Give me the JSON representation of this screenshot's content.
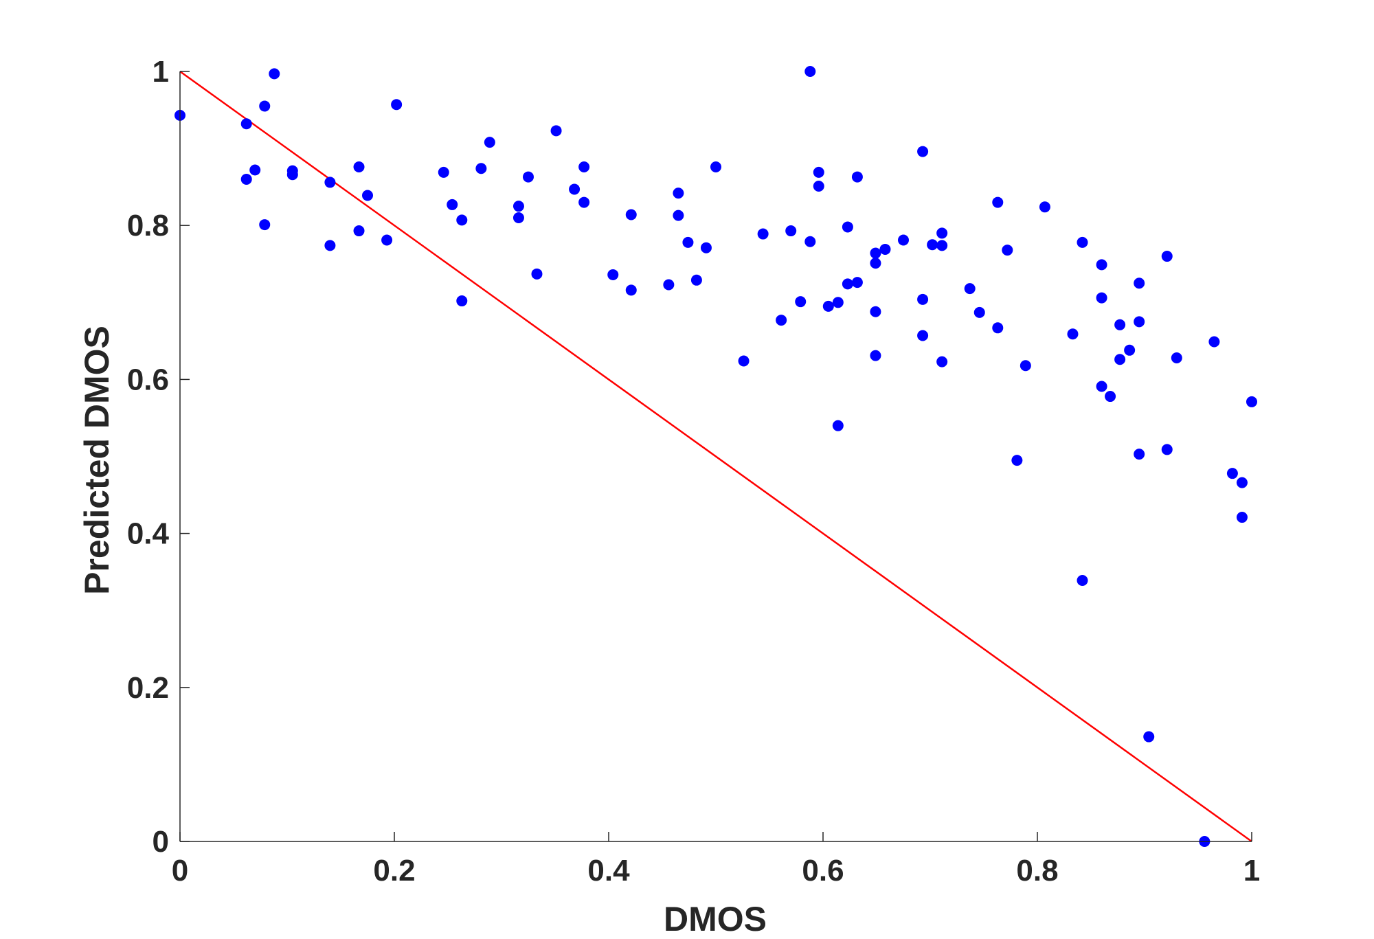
{
  "chart_data": {
    "type": "scatter",
    "title": "",
    "xlabel": "DMOS",
    "ylabel": "Predicted DMOS",
    "xlim": [
      0,
      1
    ],
    "ylim": [
      0,
      1
    ],
    "grid": false,
    "x_ticks": [
      "0",
      "0.2",
      "0.4",
      "0.6",
      "0.8",
      "1"
    ],
    "y_ticks": [
      "0",
      "0.2",
      "0.4",
      "0.6",
      "0.8",
      "1"
    ],
    "colors": {
      "points": "#0000ff",
      "reference_line": "#ff0000",
      "axes": "#262626"
    },
    "reference_line": {
      "x": [
        0,
        1
      ],
      "y": [
        1,
        0
      ]
    },
    "points": [
      {
        "x": 0.0,
        "y": 0.943
      },
      {
        "x": 0.062,
        "y": 0.932
      },
      {
        "x": 0.062,
        "y": 0.86
      },
      {
        "x": 0.07,
        "y": 0.872
      },
      {
        "x": 0.079,
        "y": 0.955
      },
      {
        "x": 0.079,
        "y": 0.801
      },
      {
        "x": 0.088,
        "y": 0.997
      },
      {
        "x": 0.105,
        "y": 0.871
      },
      {
        "x": 0.105,
        "y": 0.866
      },
      {
        "x": 0.14,
        "y": 0.856
      },
      {
        "x": 0.14,
        "y": 0.774
      },
      {
        "x": 0.167,
        "y": 0.876
      },
      {
        "x": 0.167,
        "y": 0.793
      },
      {
        "x": 0.175,
        "y": 0.839
      },
      {
        "x": 0.193,
        "y": 0.781
      },
      {
        "x": 0.202,
        "y": 0.957
      },
      {
        "x": 0.246,
        "y": 0.869
      },
      {
        "x": 0.254,
        "y": 0.827
      },
      {
        "x": 0.263,
        "y": 0.807
      },
      {
        "x": 0.263,
        "y": 0.702
      },
      {
        "x": 0.281,
        "y": 0.874
      },
      {
        "x": 0.289,
        "y": 0.908
      },
      {
        "x": 0.316,
        "y": 0.825
      },
      {
        "x": 0.316,
        "y": 0.81
      },
      {
        "x": 0.325,
        "y": 0.863
      },
      {
        "x": 0.333,
        "y": 0.737
      },
      {
        "x": 0.351,
        "y": 0.923
      },
      {
        "x": 0.368,
        "y": 0.847
      },
      {
        "x": 0.377,
        "y": 0.876
      },
      {
        "x": 0.377,
        "y": 0.83
      },
      {
        "x": 0.404,
        "y": 0.736
      },
      {
        "x": 0.421,
        "y": 0.814
      },
      {
        "x": 0.421,
        "y": 0.716
      },
      {
        "x": 0.456,
        "y": 0.723
      },
      {
        "x": 0.465,
        "y": 0.842
      },
      {
        "x": 0.465,
        "y": 0.813
      },
      {
        "x": 0.474,
        "y": 0.778
      },
      {
        "x": 0.482,
        "y": 0.729
      },
      {
        "x": 0.491,
        "y": 0.771
      },
      {
        "x": 0.5,
        "y": 0.876
      },
      {
        "x": 0.526,
        "y": 0.624
      },
      {
        "x": 0.544,
        "y": 0.789
      },
      {
        "x": 0.561,
        "y": 0.677
      },
      {
        "x": 0.57,
        "y": 0.793
      },
      {
        "x": 0.579,
        "y": 0.701
      },
      {
        "x": 0.588,
        "y": 1.0
      },
      {
        "x": 0.588,
        "y": 0.779
      },
      {
        "x": 0.596,
        "y": 0.869
      },
      {
        "x": 0.596,
        "y": 0.851
      },
      {
        "x": 0.605,
        "y": 0.695
      },
      {
        "x": 0.614,
        "y": 0.7
      },
      {
        "x": 0.614,
        "y": 0.54
      },
      {
        "x": 0.623,
        "y": 0.798
      },
      {
        "x": 0.623,
        "y": 0.724
      },
      {
        "x": 0.632,
        "y": 0.863
      },
      {
        "x": 0.632,
        "y": 0.726
      },
      {
        "x": 0.649,
        "y": 0.764
      },
      {
        "x": 0.649,
        "y": 0.751
      },
      {
        "x": 0.649,
        "y": 0.688
      },
      {
        "x": 0.649,
        "y": 0.631
      },
      {
        "x": 0.658,
        "y": 0.769
      },
      {
        "x": 0.675,
        "y": 0.781
      },
      {
        "x": 0.693,
        "y": 0.896
      },
      {
        "x": 0.693,
        "y": 0.704
      },
      {
        "x": 0.693,
        "y": 0.657
      },
      {
        "x": 0.702,
        "y": 0.775
      },
      {
        "x": 0.711,
        "y": 0.79
      },
      {
        "x": 0.711,
        "y": 0.774
      },
      {
        "x": 0.711,
        "y": 0.623
      },
      {
        "x": 0.737,
        "y": 0.718
      },
      {
        "x": 0.746,
        "y": 0.687
      },
      {
        "x": 0.763,
        "y": 0.83
      },
      {
        "x": 0.763,
        "y": 0.667
      },
      {
        "x": 0.772,
        "y": 0.768
      },
      {
        "x": 0.781,
        "y": 0.495
      },
      {
        "x": 0.789,
        "y": 0.618
      },
      {
        "x": 0.807,
        "y": 0.824
      },
      {
        "x": 0.833,
        "y": 0.659
      },
      {
        "x": 0.842,
        "y": 0.778
      },
      {
        "x": 0.842,
        "y": 0.339
      },
      {
        "x": 0.86,
        "y": 0.749
      },
      {
        "x": 0.86,
        "y": 0.706
      },
      {
        "x": 0.86,
        "y": 0.591
      },
      {
        "x": 0.868,
        "y": 0.578
      },
      {
        "x": 0.877,
        "y": 0.671
      },
      {
        "x": 0.877,
        "y": 0.626
      },
      {
        "x": 0.886,
        "y": 0.638
      },
      {
        "x": 0.895,
        "y": 0.725
      },
      {
        "x": 0.895,
        "y": 0.675
      },
      {
        "x": 0.895,
        "y": 0.503
      },
      {
        "x": 0.904,
        "y": 0.136
      },
      {
        "x": 0.921,
        "y": 0.76
      },
      {
        "x": 0.921,
        "y": 0.509
      },
      {
        "x": 0.93,
        "y": 0.628
      },
      {
        "x": 0.956,
        "y": 0.0
      },
      {
        "x": 0.965,
        "y": 0.649
      },
      {
        "x": 0.982,
        "y": 0.478
      },
      {
        "x": 0.991,
        "y": 0.466
      },
      {
        "x": 0.991,
        "y": 0.421
      },
      {
        "x": 1.0,
        "y": 0.571
      }
    ]
  }
}
